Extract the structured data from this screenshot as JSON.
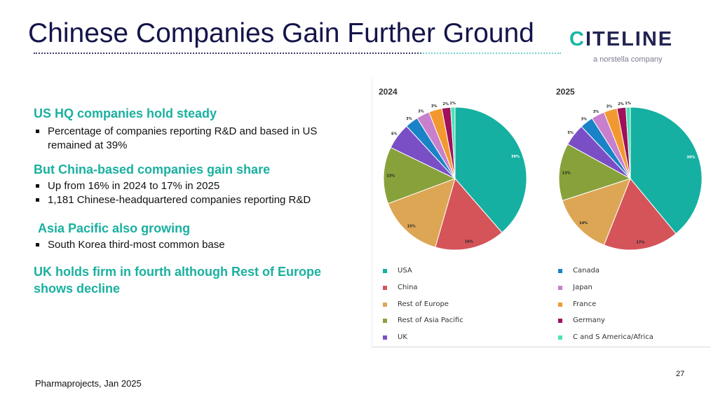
{
  "slide": {
    "title": "Chinese Companies Gain Further Ground",
    "footer": "Pharmaprojects, Jan 2025",
    "page_number": "27"
  },
  "logo": {
    "wordmark_first": "C",
    "wordmark_rest": "ITELINE",
    "tagline": "a norstella company",
    "accent_color": "#19b6a6"
  },
  "sections": [
    {
      "heading": "US HQ companies hold steady",
      "bullets": [
        "Percentage of companies reporting R&D and based in US remained at 39%"
      ]
    },
    {
      "heading": "But China-based companies gain share",
      "bullets": [
        "Up from 16% in 2024 to 17% in 2025",
        "1,181 Chinese-headquartered companies reporting R&D"
      ]
    },
    {
      "heading": "Asia Pacific also growing",
      "bullets": [
        "South Korea third-most common base"
      ]
    },
    {
      "heading": "UK holds firm in fourth although Rest of Europe shows decline",
      "bullets": []
    }
  ],
  "chart_data": [
    {
      "type": "pie",
      "title": "2024",
      "categories": [
        "USA",
        "China",
        "Rest of Europe",
        "Rest of Asia Pacific",
        "UK",
        "Canada",
        "Japan",
        "France",
        "Germany",
        "C and S America/Africa"
      ],
      "values": [
        39,
        16,
        15,
        13,
        6,
        3,
        3,
        3,
        2,
        1
      ],
      "labels": [
        "39%",
        "16%",
        "15%",
        "13%",
        "6%",
        "3%",
        "3%",
        "3%",
        "2%",
        "1%"
      ]
    },
    {
      "type": "pie",
      "title": "2025",
      "categories": [
        "USA",
        "China",
        "Rest of Europe",
        "Rest of Asia Pacific",
        "UK",
        "Canada",
        "Japan",
        "France",
        "Germany",
        "C and S America/Africa"
      ],
      "values": [
        39,
        17,
        14,
        13,
        5,
        3,
        3,
        3,
        2,
        1
      ],
      "labels": [
        "39%",
        "17%",
        "14%",
        "13%",
        "5%",
        "3%",
        "3%",
        "3%",
        "2%",
        "1%"
      ]
    }
  ],
  "legend": {
    "items": [
      "USA",
      "China",
      "Rest of Europe",
      "Rest of Asia Pacific",
      "UK",
      "Canada",
      "Japan",
      "France",
      "Germany",
      "C and S America/Africa"
    ],
    "colors": [
      "#15b0a2",
      "#d4545a",
      "#dda655",
      "#87a23b",
      "#7a4fc6",
      "#1a83c8",
      "#c880cc",
      "#f19930",
      "#a0105c",
      "#4fe3b3"
    ]
  }
}
